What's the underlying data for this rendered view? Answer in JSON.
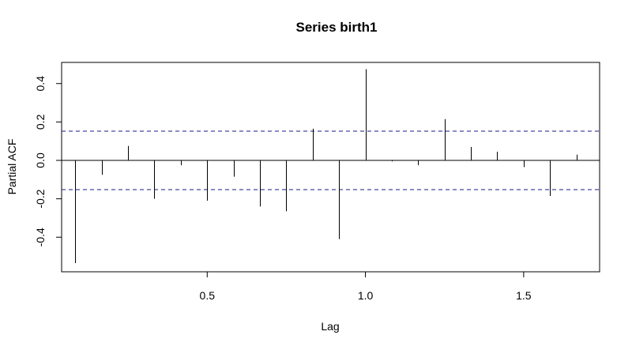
{
  "chart_data": {
    "type": "bar",
    "subtype": "partial-acf-spikes",
    "title": "Series  birth1",
    "xlabel": "Lag",
    "ylabel": "Partial ACF",
    "xlim": [
      0.04,
      1.74
    ],
    "ylim": [
      -0.58,
      0.51
    ],
    "x_ticks": [
      0.5,
      1.0,
      1.5
    ],
    "x_tick_labels": [
      "0.5",
      "1.0",
      "1.5"
    ],
    "y_ticks": [
      -0.4,
      -0.2,
      0.0,
      0.2,
      0.4
    ],
    "y_tick_labels": [
      "-0.4",
      "-0.2",
      "0.0",
      "0.2",
      "0.4"
    ],
    "zero_line": 0.0,
    "confidence_bounds": [
      0.152,
      -0.152
    ],
    "colors": {
      "spike": "#000000",
      "bound": "#1a1a8c",
      "axis": "#000000"
    },
    "x": [
      0.0833,
      0.1667,
      0.25,
      0.3333,
      0.4167,
      0.5,
      0.5833,
      0.6667,
      0.75,
      0.8333,
      0.9167,
      1.0,
      1.0833,
      1.1667,
      1.25,
      1.3333,
      1.4167,
      1.5,
      1.5833,
      1.6667
    ],
    "values": [
      -0.535,
      -0.075,
      0.075,
      -0.2,
      -0.025,
      -0.21,
      -0.085,
      -0.24,
      -0.265,
      0.165,
      -0.41,
      0.475,
      -0.005,
      -0.025,
      0.215,
      0.07,
      0.045,
      -0.035,
      -0.185,
      0.03
    ]
  }
}
